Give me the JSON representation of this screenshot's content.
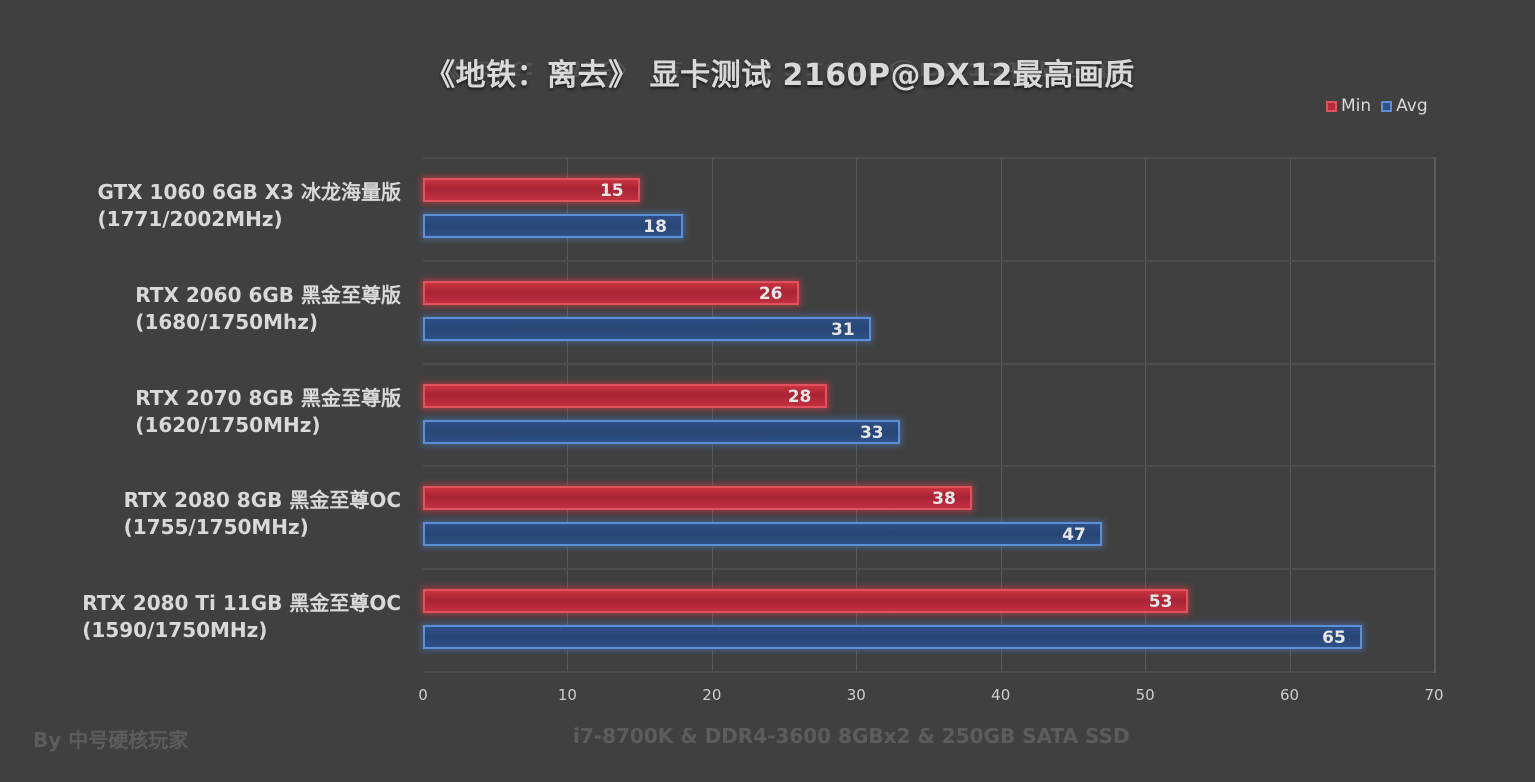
{
  "title": "《地铁：离去》 显卡测试 2160P@DX12最高画质",
  "legend": [
    {
      "name": "Min",
      "color": "#c9333f",
      "border": "#e0525d"
    },
    {
      "name": "Avg",
      "color": "#2e5086",
      "border": "#5d8fd6"
    }
  ],
  "footer": {
    "author": "By 中号硬核玩家",
    "system": "i7-8700K & DDR4-3600 8GBx2 & 250GB SATA SSD"
  },
  "categories": [
    {
      "line1": "GTX 1060 6GB X3 冰龙海量版",
      "line2": "(1771/2002MHz)",
      "min": 15,
      "avg": 18
    },
    {
      "line1": "RTX 2060 6GB 黑金至尊版",
      "line2": "(1680/1750Mhz)",
      "min": 26,
      "avg": 31
    },
    {
      "line1": "RTX 2070 8GB 黑金至尊版",
      "line2": "(1620/1750MHz)",
      "min": 28,
      "avg": 33
    },
    {
      "line1": "RTX 2080 8GB 黑金至尊OC",
      "line2": "(1755/1750MHz)",
      "min": 38,
      "avg": 47
    },
    {
      "line1": "RTX 2080 Ti 11GB 黑金至尊OC",
      "line2": "(1590/1750MHz)",
      "min": 53,
      "avg": 65
    }
  ],
  "xticks": [
    "0",
    "10",
    "20",
    "30",
    "40",
    "50",
    "60",
    "70"
  ],
  "chart_data": {
    "type": "bar",
    "orientation": "horizontal",
    "title": "《地铁：离去》 显卡测试 2160P@DX12最高画质",
    "categories": [
      "GTX 1060 6GB X3 冰龙海量版 (1771/2002MHz)",
      "RTX 2060 6GB 黑金至尊版 (1680/1750Mhz)",
      "RTX 2070 8GB 黑金至尊版 (1620/1750MHz)",
      "RTX 2080 8GB 黑金至尊OC (1755/1750MHz)",
      "RTX 2080 Ti 11GB 黑金至尊OC (1590/1750MHz)"
    ],
    "series": [
      {
        "name": "Min",
        "values": [
          15,
          26,
          28,
          38,
          53
        ]
      },
      {
        "name": "Avg",
        "values": [
          18,
          31,
          33,
          47,
          65
        ]
      }
    ],
    "xlabel": "",
    "ylabel": "",
    "xlim": [
      0,
      70
    ],
    "xticks": [
      0,
      10,
      20,
      30,
      40,
      50,
      60,
      70
    ],
    "grid": true,
    "legend_position": "top-right",
    "data_labels": true,
    "annotations": [
      "By 中号硬核玩家",
      "i7-8700K & DDR4-3600 8GBx2 & 250GB SATA SSD"
    ]
  }
}
